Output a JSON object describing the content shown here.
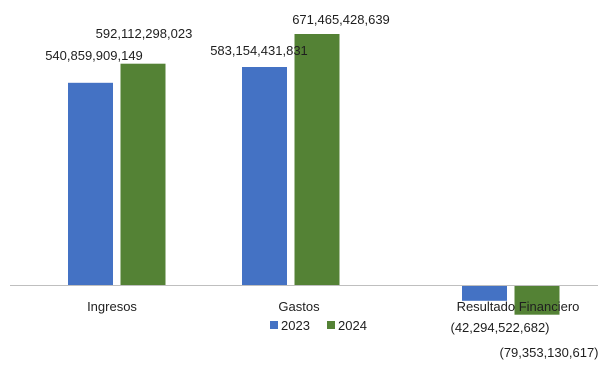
{
  "chart_data": {
    "type": "bar",
    "categories": [
      "Ingresos",
      "Gastos",
      "Resultado Financiero"
    ],
    "series": [
      {
        "name": "2023",
        "values": [
          540859909149,
          583154431831,
          -42294522682
        ],
        "labels": [
          "540,859,909,149",
          "583,154,431,831",
          "(42,294,522,682)"
        ]
      },
      {
        "name": "2024",
        "values": [
          592112298023,
          671465428639,
          -79353130617
        ],
        "labels": [
          "592,112,298,023",
          "671,465,428,639",
          "(79,353,130,617)"
        ]
      }
    ],
    "legend_position": "bottom",
    "grid": false,
    "colors": {
      "2023": "#4472C4",
      "2024": "#548235",
      "axis": "#bfbfbf"
    }
  }
}
